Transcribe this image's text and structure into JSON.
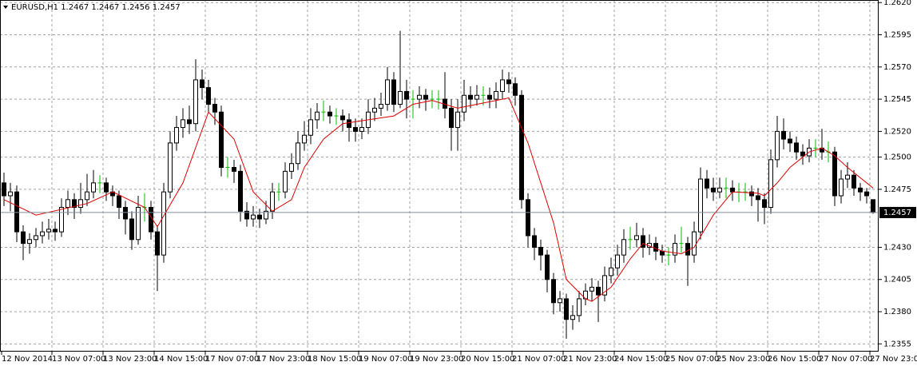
{
  "chart_data": {
    "type": "candlestick",
    "title": "EURUSD,H1  1.2467 1.2467 1.2456 1.2457",
    "x_labels": [
      "12 Nov 2014",
      "13 Nov 07:00",
      "13 Nov 23:00",
      "14 Nov 15:00",
      "17 Nov 07:00",
      "17 Nov 23:00",
      "18 Nov 15:00",
      "19 Nov 07:00",
      "19 Nov 23:00",
      "20 Nov 15:00",
      "21 Nov 07:00",
      "21 Nov 23:00",
      "24 Nov 15:00",
      "25 Nov 07:00",
      "25 Nov 23:00",
      "26 Nov 15:00",
      "27 Nov 07:00",
      "27 Nov 23:00"
    ],
    "open": [
      1.248,
      1.247,
      1.2473,
      1.2442,
      1.2433,
      1.2436,
      1.2439,
      1.2442,
      1.2444,
      1.2442,
      1.2461,
      1.2467,
      1.2461,
      1.2467,
      1.2473,
      1.248,
      1.248,
      1.2473,
      1.247,
      1.2461,
      1.2452,
      1.2436,
      1.2461,
      1.2461,
      1.2442,
      1.2424,
      1.2473,
      1.2511,
      1.2523,
      1.2529,
      1.2526,
      1.256,
      1.2554,
      1.2541,
      1.2535,
      1.2492,
      1.2492,
      1.2489,
      1.2458,
      1.2452,
      1.2455,
      1.2452,
      1.2458,
      1.2473,
      1.2473,
      1.2489,
      1.2495,
      1.2511,
      1.2517,
      1.2529,
      1.2535,
      1.2535,
      1.2532,
      1.2532,
      1.2529,
      1.2523,
      1.252,
      1.2523,
      1.2535,
      1.2538,
      1.2541,
      1.256,
      1.2541,
      1.2551,
      1.2545,
      1.2545,
      1.2548,
      1.2545,
      1.2545,
      1.2545,
      1.2538,
      1.2523,
      1.2535,
      1.2548,
      1.2545,
      1.2548,
      1.2548,
      1.2545,
      1.2551,
      1.256,
      1.2557,
      1.2548,
      1.2467,
      1.2439,
      1.243,
      1.2424,
      1.2405,
      1.2387,
      1.239,
      1.2374,
      1.2377,
      1.239,
      1.2396,
      1.2399,
      1.2393,
      1.2408,
      1.2414,
      1.2424,
      1.2436,
      1.2436,
      1.2439,
      1.243,
      1.2433,
      1.2427,
      1.2424,
      1.2424,
      1.2433,
      1.2433,
      1.2424,
      1.2442,
      1.2483,
      1.2476,
      1.2473,
      1.2476,
      1.2476,
      1.2473,
      1.2473,
      1.2473,
      1.247,
      1.2467,
      1.2461,
      1.2498,
      1.252,
      1.2514,
      1.2511,
      1.2504,
      1.2501,
      1.2507,
      1.2507,
      1.2504,
      1.2504,
      1.247,
      1.2483,
      1.2486,
      1.2476,
      1.2473,
      1.2467
    ],
    "high": [
      1.2488,
      1.248,
      1.2478,
      1.2447,
      1.2441,
      1.2445,
      1.245,
      1.2452,
      1.245,
      1.2468,
      1.2474,
      1.2472,
      1.248,
      1.2487,
      1.249,
      1.2486,
      1.2484,
      1.2478,
      1.2474,
      1.2466,
      1.2458,
      1.247,
      1.2472,
      1.2466,
      1.2447,
      1.248,
      1.252,
      1.2532,
      1.2538,
      1.254,
      1.2576,
      1.2568,
      1.256,
      1.2546,
      1.254,
      1.25,
      1.2498,
      1.2494,
      1.2465,
      1.2462,
      1.246,
      1.2466,
      1.248,
      1.248,
      1.2496,
      1.2503,
      1.252,
      1.2528,
      1.2538,
      1.2542,
      1.2544,
      1.254,
      1.2538,
      1.2537,
      1.2534,
      1.253,
      1.253,
      1.2545,
      1.2546,
      1.255,
      1.257,
      1.2566,
      1.2598,
      1.256,
      1.2552,
      1.2555,
      1.2553,
      1.2552,
      1.2552,
      1.2566,
      1.2545,
      1.2545,
      1.256,
      1.2555,
      1.2556,
      1.2555,
      1.2554,
      1.2558,
      1.2568,
      1.2566,
      1.2562,
      1.2552,
      1.2472,
      1.2445,
      1.2436,
      1.2428,
      1.241,
      1.2396,
      1.2394,
      1.2385,
      1.2396,
      1.2402,
      1.2406,
      1.2404,
      1.2415,
      1.2422,
      1.2432,
      1.2444,
      1.2446,
      1.2449,
      1.2445,
      1.244,
      1.2438,
      1.2432,
      1.243,
      1.244,
      1.2446,
      1.2438,
      1.245,
      1.2492,
      1.249,
      1.2484,
      1.2484,
      1.2484,
      1.2482,
      1.248,
      1.248,
      1.2478,
      1.2476,
      1.2472,
      1.2506,
      1.2532,
      1.253,
      1.252,
      1.2516,
      1.251,
      1.2514,
      1.2514,
      1.2522,
      1.2512,
      1.2508,
      1.249,
      1.2496,
      1.249,
      1.248,
      1.2476,
      1.2467
    ],
    "low": [
      1.2462,
      1.2458,
      1.2434,
      1.242,
      1.2425,
      1.243,
      1.2433,
      1.2436,
      1.2435,
      1.2438,
      1.2455,
      1.2452,
      1.2456,
      1.2462,
      1.2468,
      1.2472,
      1.2466,
      1.2462,
      1.2452,
      1.244,
      1.2428,
      1.2432,
      1.245,
      1.2436,
      1.2396,
      1.2418,
      1.2468,
      1.2505,
      1.2515,
      1.2518,
      1.252,
      1.2545,
      1.2535,
      1.2525,
      1.2485,
      1.2484,
      1.248,
      1.245,
      1.2446,
      1.2446,
      1.2445,
      1.2448,
      1.2452,
      1.2466,
      1.2468,
      1.2483,
      1.249,
      1.2505,
      1.251,
      1.2522,
      1.2528,
      1.2526,
      1.2525,
      1.252,
      1.2512,
      1.2512,
      1.2514,
      1.2518,
      1.2528,
      1.2532,
      1.2536,
      1.2535,
      1.2538,
      1.253,
      1.253,
      1.2538,
      1.2536,
      1.2538,
      1.2537,
      1.253,
      1.2505,
      1.2505,
      1.2528,
      1.2538,
      1.254,
      1.254,
      1.2538,
      1.2538,
      1.2545,
      1.255,
      1.254,
      1.246,
      1.243,
      1.242,
      1.2412,
      1.2395,
      1.2378,
      1.238,
      1.2359,
      1.2366,
      1.2372,
      1.2385,
      1.2388,
      1.2372,
      1.2388,
      1.2402,
      1.2408,
      1.2418,
      1.2428,
      1.243,
      1.2422,
      1.2424,
      1.242,
      1.2418,
      1.2416,
      1.2418,
      1.2426,
      1.24,
      1.2418,
      1.2436,
      1.2468,
      1.2466,
      1.2468,
      1.2468,
      1.2466,
      1.2465,
      1.2466,
      1.2462,
      1.245,
      1.2448,
      1.2456,
      1.2492,
      1.2506,
      1.2504,
      1.2498,
      1.2494,
      1.2496,
      1.25,
      1.2498,
      1.2496,
      1.2462,
      1.2464,
      1.2476,
      1.247,
      1.2466,
      1.2464,
      1.2456
    ],
    "close": [
      1.247,
      1.2473,
      1.2442,
      1.2433,
      1.2436,
      1.2439,
      1.2442,
      1.2444,
      1.2442,
      1.2461,
      1.2467,
      1.2461,
      1.2467,
      1.2473,
      1.248,
      1.248,
      1.2473,
      1.247,
      1.2461,
      1.2452,
      1.2436,
      1.2461,
      1.2461,
      1.2442,
      1.2424,
      1.2473,
      1.2511,
      1.2523,
      1.2529,
      1.2526,
      1.256,
      1.2554,
      1.2541,
      1.2535,
      1.2492,
      1.2492,
      1.2489,
      1.2458,
      1.2452,
      1.2455,
      1.2452,
      1.2458,
      1.2473,
      1.2473,
      1.2489,
      1.2495,
      1.2511,
      1.2517,
      1.2529,
      1.2535,
      1.2535,
      1.2532,
      1.2532,
      1.2529,
      1.2523,
      1.252,
      1.2523,
      1.2535,
      1.2538,
      1.2541,
      1.256,
      1.2541,
      1.2551,
      1.2545,
      1.2545,
      1.2548,
      1.2545,
      1.2545,
      1.2545,
      1.2538,
      1.2523,
      1.2535,
      1.2548,
      1.2545,
      1.2548,
      1.2548,
      1.2545,
      1.2551,
      1.256,
      1.2557,
      1.2548,
      1.2467,
      1.2439,
      1.243,
      1.2424,
      1.2405,
      1.2387,
      1.239,
      1.2374,
      1.2377,
      1.239,
      1.2396,
      1.2399,
      1.2393,
      1.2408,
      1.2414,
      1.2424,
      1.2436,
      1.2436,
      1.2439,
      1.243,
      1.2433,
      1.2427,
      1.2424,
      1.2424,
      1.2433,
      1.2433,
      1.2424,
      1.2442,
      1.2483,
      1.2476,
      1.2473,
      1.2476,
      1.2476,
      1.2473,
      1.2473,
      1.2473,
      1.247,
      1.2467,
      1.2461,
      1.2498,
      1.252,
      1.2514,
      1.2511,
      1.2504,
      1.2501,
      1.2507,
      1.2507,
      1.2504,
      1.2504,
      1.247,
      1.2483,
      1.2486,
      1.2476,
      1.2473,
      1.247,
      1.2457
    ],
    "bull_color": "#ffffff",
    "bear_color": "#000000",
    "wick_color": "#000000",
    "doji_color": "#00c000",
    "ma": {
      "color": "#e00000",
      "x": [
        0,
        5,
        13,
        17,
        22,
        24,
        28,
        32,
        36,
        39,
        42,
        45,
        47,
        50,
        53,
        57,
        61,
        64,
        67,
        71,
        74,
        79,
        82,
        86,
        88,
        91,
        92,
        95,
        98,
        100,
        103,
        106,
        108,
        111,
        114,
        118,
        119,
        121,
        123,
        126,
        128,
        130,
        132,
        136
      ],
      "values": [
        1.2467,
        1.2455,
        1.2464,
        1.2473,
        1.2461,
        1.2446,
        1.248,
        1.2535,
        1.2514,
        1.2473,
        1.2458,
        1.2467,
        1.2492,
        1.2514,
        1.2526,
        1.2529,
        1.2532,
        1.2541,
        1.2544,
        1.2538,
        1.2541,
        1.2546,
        1.2511,
        1.2449,
        1.2405,
        1.239,
        1.2388,
        1.2399,
        1.2421,
        1.2433,
        1.2427,
        1.2425,
        1.243,
        1.2455,
        1.2473,
        1.2472,
        1.247,
        1.248,
        1.2492,
        1.2504,
        1.2507,
        1.2501,
        1.2492,
        1.2476
      ]
    },
    "current_price": 1.2457,
    "ylim": [
      1.2349,
      1.2622
    ],
    "yticks": [
      {
        "value": 1.262,
        "label": "1.2620"
      },
      1.2595,
      {
        "value": 1.257,
        "label": "1.2570"
      },
      1.2545,
      {
        "value": 1.252,
        "label": "1.2520"
      },
      {
        "value": 1.25,
        "label": "1.2500"
      },
      1.2475,
      {
        "value": 1.243,
        "label": "1.2430"
      },
      1.2405,
      {
        "value": 1.238,
        "label": "1.2380"
      },
      1.2355
    ],
    "grid": true
  }
}
